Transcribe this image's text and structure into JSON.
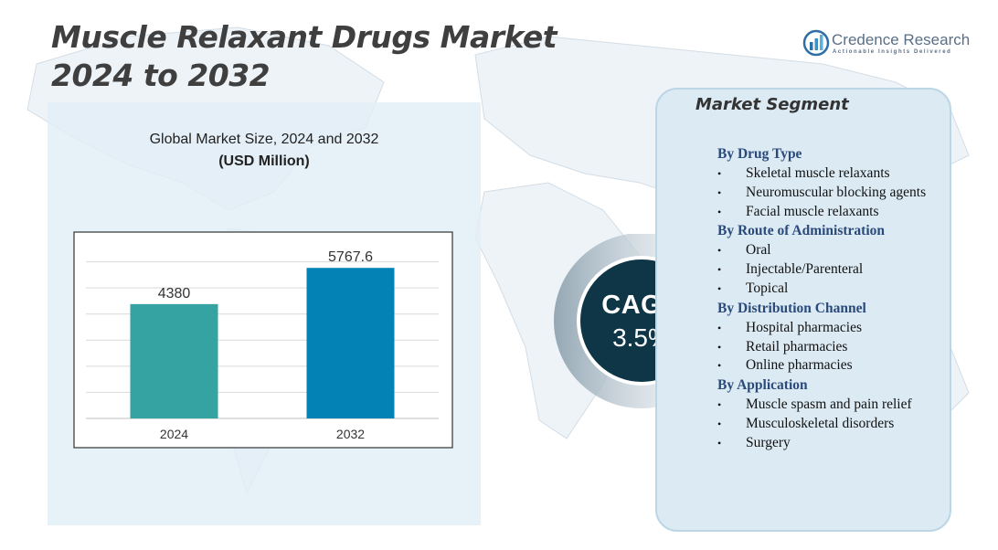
{
  "title": {
    "line1": "Muscle Relaxant Drugs Market",
    "line2": "2024 to 2032"
  },
  "logo": {
    "name": "Credence Research",
    "tagline": "Actionable Insights Delivered",
    "icon": "credence-logo-icon"
  },
  "chart_panel": {
    "title": "Global Market Size,  2024 and 2032",
    "unit": "(USD Million)"
  },
  "chart_data": {
    "type": "bar",
    "title": "Global Market Size,  2024 and 2032",
    "subtitle": "(USD Million)",
    "categories": [
      "2024",
      "2032"
    ],
    "values": [
      4380,
      5767.6
    ],
    "value_labels": [
      "4380",
      "5767.6"
    ],
    "colors": [
      "#34a3a1",
      "#0382b5"
    ],
    "ylim": [
      0,
      7000
    ],
    "grid": true,
    "xlabel": "",
    "ylabel": ""
  },
  "cagr": {
    "label": "CAGR",
    "value": "3.5%"
  },
  "segment": {
    "title": "Market Segment",
    "groups": [
      {
        "heading": "By Drug  Type",
        "items": [
          "Skeletal muscle relaxants",
          "Neuromuscular  blocking agents",
          "Facial muscle relaxants"
        ]
      },
      {
        "heading": "By Route of Administration",
        "items": [
          "Oral",
          "Injectable/Parenteral",
          "Topical"
        ]
      },
      {
        "heading": "By Distribution  Channel",
        "items": [
          "Hospital pharmacies",
          "Retail pharmacies",
          "Online pharmacies"
        ]
      },
      {
        "heading": "By Application",
        "items": [
          "Muscle spasm and pain relief",
          "Musculoskeletal  disorders",
          "Surgery"
        ]
      }
    ]
  }
}
